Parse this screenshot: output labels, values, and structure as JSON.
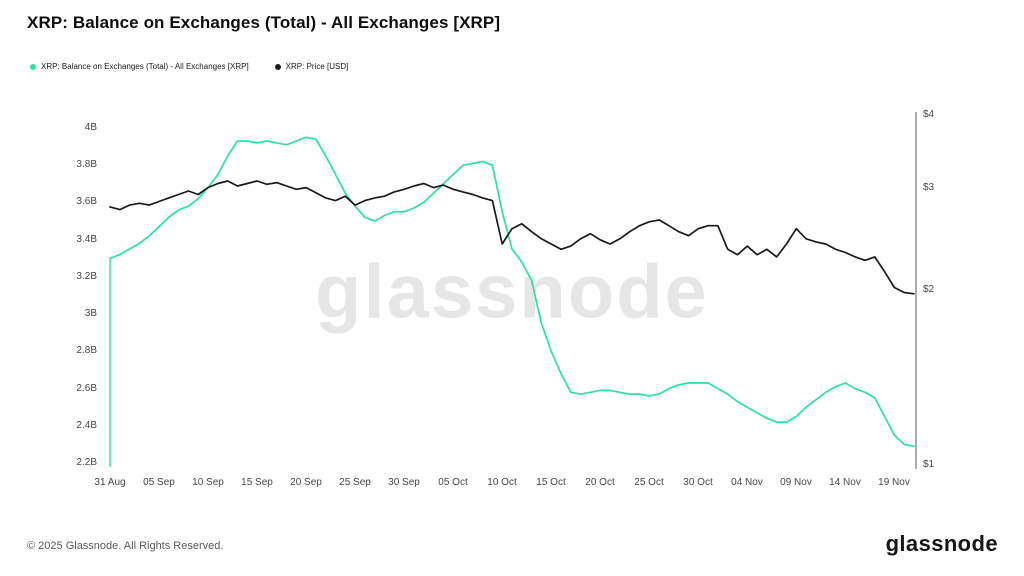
{
  "header": {
    "title": "XRP: Balance on Exchanges (Total) - All Exchanges [XRP]"
  },
  "watermark": "glassnode",
  "footer": {
    "copyright": "© 2025 Glassnode. All Rights Reserved.",
    "logo": "glassnode"
  },
  "colors": {
    "balance_series": "#2de0a5",
    "price_series": "#1a1a1a",
    "right_axis_line": "#ababab"
  },
  "chart_data": {
    "type": "line",
    "title": "XRP: Balance on Exchanges (Total) - All Exchanges [XRP]",
    "x_unit": "day index from 31 Aug",
    "x_ticks": [
      {
        "label": "31 Aug",
        "day": 0
      },
      {
        "label": "05 Sep",
        "day": 5
      },
      {
        "label": "10 Sep",
        "day": 10
      },
      {
        "label": "15 Sep",
        "day": 15
      },
      {
        "label": "20 Sep",
        "day": 20
      },
      {
        "label": "25 Sep",
        "day": 25
      },
      {
        "label": "30 Sep",
        "day": 30
      },
      {
        "label": "05 Oct",
        "day": 35
      },
      {
        "label": "10 Oct",
        "day": 40
      },
      {
        "label": "15 Oct",
        "day": 45
      },
      {
        "label": "20 Oct",
        "day": 50
      },
      {
        "label": "25 Oct",
        "day": 55
      },
      {
        "label": "30 Oct",
        "day": 60
      },
      {
        "label": "04 Nov",
        "day": 65
      },
      {
        "label": "09 Nov",
        "day": 70
      },
      {
        "label": "14 Nov",
        "day": 75
      },
      {
        "label": "19 Nov",
        "day": 80
      }
    ],
    "left_axis": {
      "title": "XRP balance (billions)",
      "scale": "linear",
      "min": 2.2,
      "max": 4.0,
      "labels": [
        {
          "label": "4B",
          "value": 4.0
        },
        {
          "label": "3.8B",
          "value": 3.8
        },
        {
          "label": "3.6B",
          "value": 3.6
        },
        {
          "label": "3.4B",
          "value": 3.4
        },
        {
          "label": "3.2B",
          "value": 3.2
        },
        {
          "label": "3B",
          "value": 3.0
        },
        {
          "label": "2.8B",
          "value": 2.8
        },
        {
          "label": "2.6B",
          "value": 2.6
        },
        {
          "label": "2.4B",
          "value": 2.4
        },
        {
          "label": "2.2B",
          "value": 2.2
        }
      ]
    },
    "right_axis": {
      "title": "XRP price (USD)",
      "scale": "log",
      "min": 1,
      "max": 4,
      "labels": [
        {
          "label": "$4",
          "value": 4
        },
        {
          "label": "$3",
          "value": 3
        },
        {
          "label": "$2",
          "value": 2
        },
        {
          "label": "$1",
          "value": 1
        }
      ]
    },
    "series": [
      {
        "name": "XRP: Balance on Exchanges (Total) - All Exchanges [XRP]",
        "axis": "left",
        "unit": "B",
        "color": "#2de0a5",
        "starts_from_bottom": true,
        "values": [
          3.3,
          3.32,
          3.35,
          3.38,
          3.42,
          3.47,
          3.52,
          3.56,
          3.58,
          3.62,
          3.68,
          3.75,
          3.85,
          3.93,
          3.93,
          3.92,
          3.93,
          3.92,
          3.91,
          3.93,
          3.95,
          3.94,
          3.85,
          3.75,
          3.65,
          3.58,
          3.52,
          3.5,
          3.53,
          3.55,
          3.55,
          3.57,
          3.6,
          3.65,
          3.7,
          3.75,
          3.8,
          3.81,
          3.82,
          3.8,
          3.55,
          3.35,
          3.28,
          3.18,
          2.95,
          2.8,
          2.68,
          2.58,
          2.57,
          2.58,
          2.59,
          2.59,
          2.58,
          2.57,
          2.57,
          2.56,
          2.57,
          2.6,
          2.62,
          2.63,
          2.63,
          2.63,
          2.6,
          2.57,
          2.53,
          2.5,
          2.47,
          2.44,
          2.42,
          2.42,
          2.45,
          2.5,
          2.54,
          2.58,
          2.61,
          2.63,
          2.6,
          2.58,
          2.55,
          2.45,
          2.35,
          2.3,
          2.29
        ]
      },
      {
        "name": "XRP: Price [USD]",
        "axis": "right",
        "unit": "USD",
        "color": "#1a1a1a",
        "starts_from_bottom": false,
        "values": [
          2.78,
          2.75,
          2.8,
          2.82,
          2.8,
          2.84,
          2.88,
          2.92,
          2.96,
          2.92,
          3.0,
          3.05,
          3.08,
          3.02,
          3.05,
          3.08,
          3.04,
          3.06,
          3.02,
          2.98,
          3.0,
          2.94,
          2.88,
          2.85,
          2.9,
          2.8,
          2.85,
          2.88,
          2.9,
          2.95,
          2.98,
          3.02,
          3.05,
          3.0,
          3.03,
          2.98,
          2.95,
          2.92,
          2.88,
          2.85,
          2.4,
          2.55,
          2.6,
          2.52,
          2.45,
          2.4,
          2.35,
          2.38,
          2.45,
          2.5,
          2.44,
          2.4,
          2.45,
          2.52,
          2.58,
          2.62,
          2.64,
          2.58,
          2.52,
          2.48,
          2.55,
          2.58,
          2.58,
          2.35,
          2.3,
          2.38,
          2.3,
          2.35,
          2.28,
          2.4,
          2.55,
          2.45,
          2.42,
          2.4,
          2.35,
          2.32,
          2.28,
          2.25,
          2.28,
          2.15,
          2.02,
          1.98,
          1.97
        ]
      }
    ],
    "legend_position": "top-left",
    "grid": false
  },
  "legend": [
    {
      "label": "XRP: Balance on Exchanges (Total) - All Exchanges [XRP]",
      "color": "#2de0a5"
    },
    {
      "label": "XRP: Price [USD]",
      "color": "#1a1a1a"
    }
  ]
}
